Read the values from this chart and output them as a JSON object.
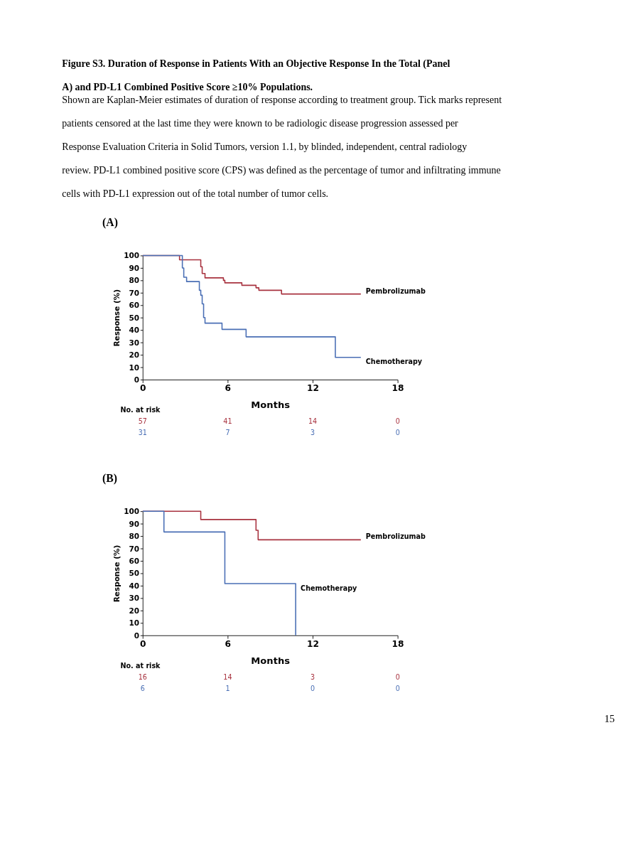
{
  "chart_data": [
    {
      "type": "step",
      "title": "Figure S3. Duration of Response in Patients With an Objective Response In the Total (Panel A) and PD-L1 Combined Positive Score ≥10% Populations.",
      "subtitle": "Shown are Kaplan-Meier estimates of duration of response according to treatment group. Tick marks represent patients censored at the last time they were known to be radiologic disease progression assessed per Response Evaluation Criteria in Solid Tumors, version 1.1, by blinded, independent, central radiology review. PD-L1 combined positive score (CPS) was defined as the percentage of tumor and infiltrating immune cells with PD-L1 expression out of the total number of tumor cells.",
      "xlabel": "Months",
      "ylabel": "Response (%)",
      "xlim": [
        0,
        18
      ],
      "xticks": [
        0,
        6,
        12,
        18
      ],
      "ylim": [
        0,
        100
      ],
      "yticks": [
        0,
        10,
        20,
        30,
        40,
        50,
        60,
        70,
        80,
        90,
        100
      ],
      "grid": false,
      "legend": false,
      "line_style": "solid",
      "marker": "none",
      "series": [
        {
          "name": "Pembrolizumab",
          "color": "#a8323f",
          "x": [
            0,
            2.6,
            4.1,
            4.2,
            4.4,
            5.7,
            5.8,
            7.0,
            8.0,
            8.2,
            9.8,
            15.4
          ],
          "values": [
            100,
            96.5,
            91,
            85.5,
            82,
            80,
            78,
            76,
            74,
            72,
            69,
            69
          ]
        },
        {
          "name": "Chemotherapy",
          "color": "#4a6fb5",
          "x": [
            0,
            2.8,
            2.9,
            3.1,
            4.0,
            4.1,
            4.2,
            4.3,
            4.4,
            5.6,
            7.3,
            13.6,
            15.4
          ],
          "values": [
            100,
            90,
            82.5,
            79,
            72,
            68,
            61,
            50,
            45.5,
            40.5,
            34.5,
            18,
            18
          ]
        }
      ],
      "annotations": [
        "(A)",
        "No. at risk",
        "57",
        "41",
        "14",
        "0",
        "31",
        "7",
        "3",
        "0"
      ]
    },
    {
      "type": "step",
      "xlabel": "Months",
      "ylabel": "Response (%)",
      "xlim": [
        0,
        18
      ],
      "xticks": [
        0,
        6,
        12,
        18
      ],
      "ylim": [
        0,
        100
      ],
      "yticks": [
        0,
        10,
        20,
        30,
        40,
        50,
        60,
        70,
        80,
        90,
        100
      ],
      "grid": false,
      "legend": false,
      "line_style": "solid",
      "marker": "none",
      "series": [
        {
          "name": "Pembrolizumab",
          "color": "#a8323f",
          "x": [
            0,
            4.1,
            8.0,
            8.15,
            15.4
          ],
          "values": [
            100,
            93.3,
            84.7,
            77,
            77
          ]
        },
        {
          "name": "Chemotherapy",
          "color": "#4a6fb5",
          "x": [
            0,
            1.5,
            5.8,
            10.8
          ],
          "values": [
            100,
            83.3,
            41.7,
            0
          ]
        }
      ],
      "annotations": [
        "(B)",
        "No. at risk",
        "16",
        "14",
        "3",
        "0",
        "6",
        "1",
        "0",
        "0",
        "15"
      ]
    }
  ]
}
